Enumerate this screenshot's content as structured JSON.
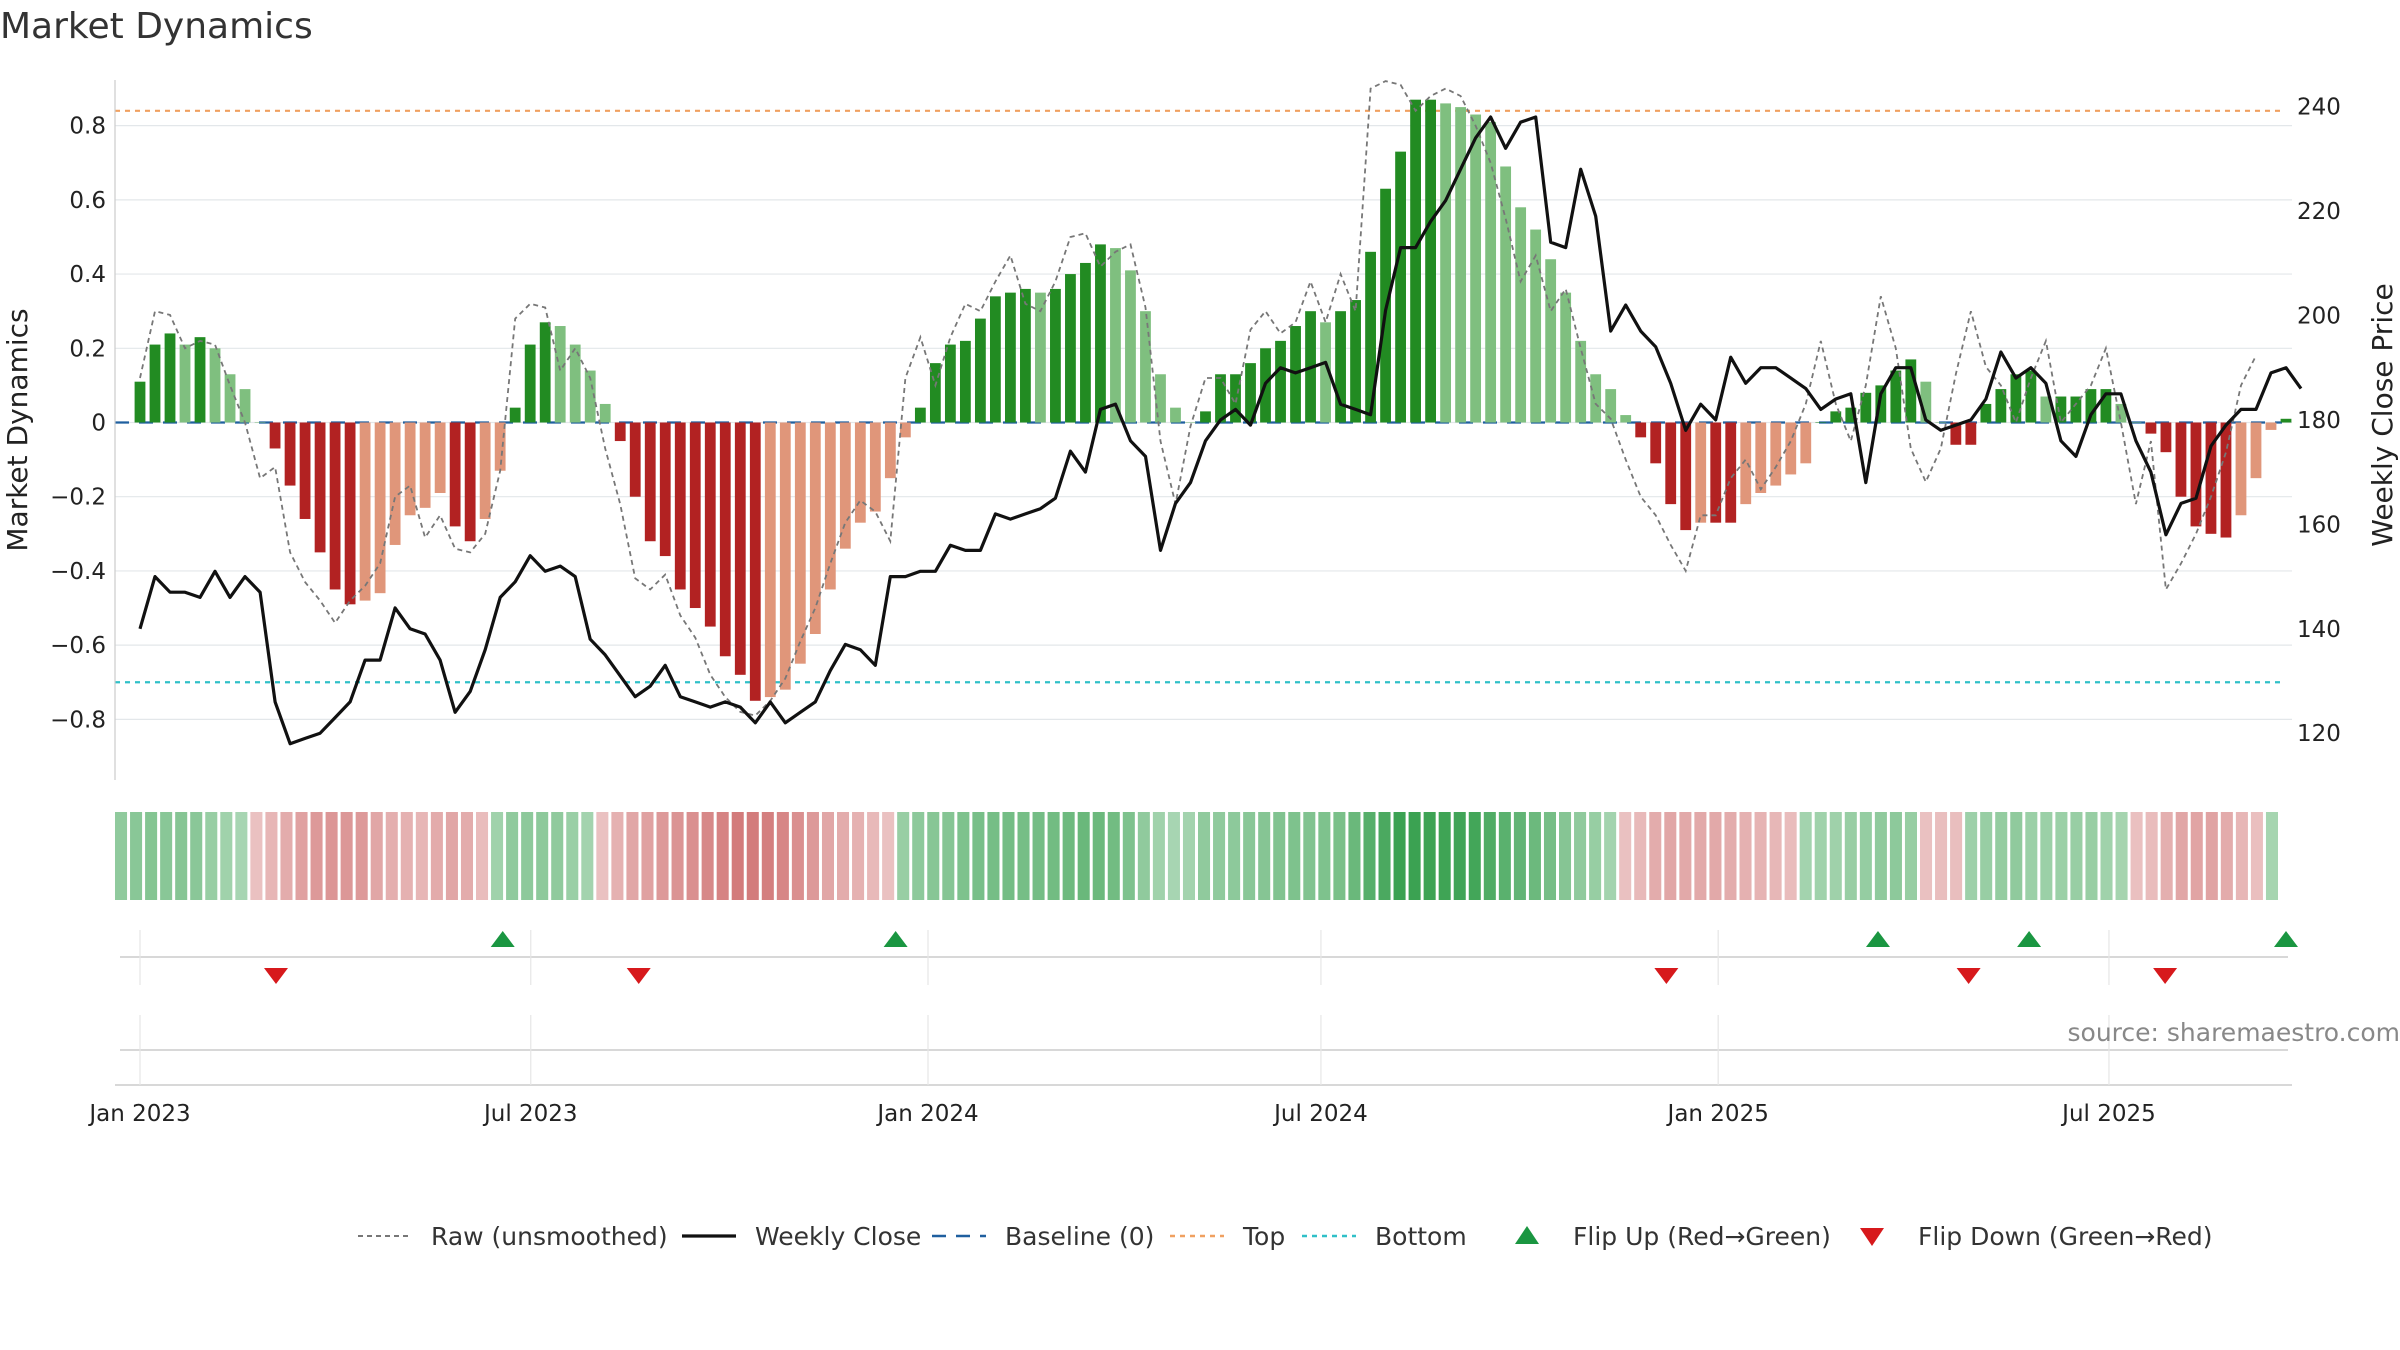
{
  "title": "Market Dynamics",
  "source": "source: sharemaestro.com",
  "colors": {
    "strong_green": "#228b22",
    "light_green": "#7fbf7f",
    "strong_red": "#b22222",
    "light_red": "#e0967a",
    "close_line": "#111111",
    "raw_line": "#777777",
    "baseline": "#1f5f9f",
    "top": "#f0a060",
    "bottom": "#30c0c8",
    "flip_up": "#1a9641",
    "flip_down": "#d7191c"
  },
  "legend": [
    {
      "label": "Raw (unsmoothed)",
      "icon": "dashed-gray-line"
    },
    {
      "label": "Weekly Close",
      "icon": "solid-black-line"
    },
    {
      "label": "Baseline (0)",
      "icon": "dashed-blue-line"
    },
    {
      "label": "Top",
      "icon": "dotted-orange-line"
    },
    {
      "label": "Bottom",
      "icon": "dotted-cyan-line"
    },
    {
      "label": "Flip Up (Red→Green)",
      "icon": "green-up-triangle"
    },
    {
      "label": "Flip Down (Green→Red)",
      "icon": "red-down-triangle"
    }
  ],
  "chart_data": {
    "type": "bar",
    "x_type": "date",
    "date_range": [
      "2023-01-01",
      "2025-09-21"
    ],
    "x_tick_labels": [
      {
        "date": "2023-01-01",
        "label": "Jan 2023"
      },
      {
        "date": "2023-07-01",
        "label": "Jul 2023"
      },
      {
        "date": "2024-01-01",
        "label": "Jan 2024"
      },
      {
        "date": "2024-07-01",
        "label": "Jul 2024"
      },
      {
        "date": "2025-01-01",
        "label": "Jan 2025"
      },
      {
        "date": "2025-07-01",
        "label": "Jul 2025"
      }
    ],
    "y_left": {
      "label": "Market Dynamics",
      "ylim": [
        -0.95,
        0.95
      ],
      "ticks": [
        0.8,
        0.6,
        0.4,
        0.2,
        0,
        -0.2,
        -0.4,
        -0.6,
        -0.8
      ],
      "tick_labels": [
        "0.8",
        "0.6",
        "0.4",
        "0.2",
        "0",
        "−0.2",
        "−0.4",
        "−0.6",
        "−0.8"
      ]
    },
    "y_right": {
      "label": "Weekly Close Price",
      "ylim": [
        112,
        247
      ],
      "ticks": [
        240,
        220,
        200,
        180,
        160,
        140,
        120
      ],
      "tick_labels": [
        "240",
        "220",
        "200",
        "180",
        "160",
        "140",
        "120"
      ]
    },
    "top_line": 0.84,
    "bottom_line": -0.7,
    "baseline": 0,
    "grid": true,
    "legend_position": "bottom",
    "series": [
      {
        "name": "Market Dynamics",
        "kind": "bar",
        "values": [
          0.11,
          0.21,
          0.24,
          0.21,
          0.23,
          0.2,
          0.13,
          0.09,
          0.0,
          -0.07,
          -0.17,
          -0.26,
          -0.35,
          -0.45,
          -0.49,
          -0.48,
          -0.46,
          -0.33,
          -0.25,
          -0.23,
          -0.19,
          -0.28,
          -0.32,
          -0.26,
          -0.13,
          0.04,
          0.21,
          0.27,
          0.26,
          0.21,
          0.14,
          0.05,
          -0.05,
          -0.2,
          -0.32,
          -0.36,
          -0.45,
          -0.5,
          -0.55,
          -0.63,
          -0.68,
          -0.75,
          -0.74,
          -0.72,
          -0.65,
          -0.57,
          -0.45,
          -0.34,
          -0.27,
          -0.24,
          -0.15,
          -0.04,
          0.04,
          0.16,
          0.21,
          0.22,
          0.28,
          0.34,
          0.35,
          0.36,
          0.35,
          0.36,
          0.4,
          0.43,
          0.48,
          0.47,
          0.41,
          0.3,
          0.13,
          0.04,
          0.0,
          0.03,
          0.13,
          0.13,
          0.16,
          0.2,
          0.22,
          0.26,
          0.3,
          0.27,
          0.3,
          0.33,
          0.46,
          0.63,
          0.73,
          0.87,
          0.87,
          0.86,
          0.85,
          0.83,
          0.81,
          0.69,
          0.58,
          0.52,
          0.44,
          0.35,
          0.22,
          0.13,
          0.09,
          0.02,
          -0.04,
          -0.11,
          -0.22,
          -0.29,
          -0.27,
          -0.27,
          -0.27,
          -0.22,
          -0.19,
          -0.17,
          -0.14,
          -0.11,
          0.0,
          0.03,
          0.04,
          0.08,
          0.1,
          0.14,
          0.17,
          0.11,
          0.0,
          -0.06,
          -0.06,
          0.05,
          0.09,
          0.13,
          0.14,
          0.07,
          0.07,
          0.07,
          0.09,
          0.09,
          0.05,
          0.0,
          -0.03,
          -0.08,
          -0.2,
          -0.28,
          -0.3,
          -0.31,
          -0.25,
          -0.15,
          -0.02,
          0.01
        ]
      },
      {
        "name": "Raw (unsmoothed)",
        "kind": "line",
        "values": [
          0.12,
          0.3,
          0.29,
          0.2,
          0.22,
          0.21,
          0.1,
          0.0,
          -0.15,
          -0.12,
          -0.35,
          -0.43,
          -0.48,
          -0.54,
          -0.48,
          -0.44,
          -0.38,
          -0.2,
          -0.17,
          -0.31,
          -0.25,
          -0.34,
          -0.35,
          -0.3,
          -0.13,
          0.28,
          0.32,
          0.31,
          0.14,
          0.2,
          0.12,
          -0.07,
          -0.22,
          -0.42,
          -0.45,
          -0.41,
          -0.52,
          -0.58,
          -0.68,
          -0.74,
          -0.78,
          -0.79,
          -0.75,
          -0.69,
          -0.59,
          -0.5,
          -0.38,
          -0.27,
          -0.21,
          -0.24,
          -0.32,
          0.12,
          0.23,
          0.1,
          0.23,
          0.32,
          0.3,
          0.38,
          0.45,
          0.32,
          0.3,
          0.38,
          0.5,
          0.51,
          0.42,
          0.46,
          0.48,
          0.31,
          -0.05,
          -0.22,
          -0.01,
          0.12,
          0.12,
          0.05,
          0.25,
          0.3,
          0.24,
          0.27,
          0.38,
          0.27,
          0.4,
          0.3,
          0.9,
          0.92,
          0.91,
          0.84,
          0.88,
          0.9,
          0.88,
          0.8,
          0.7,
          0.55,
          0.38,
          0.45,
          0.3,
          0.36,
          0.2,
          0.05,
          0.01,
          -0.1,
          -0.2,
          -0.25,
          -0.33,
          -0.4,
          -0.25,
          -0.25,
          -0.15,
          -0.1,
          -0.18,
          -0.12,
          -0.05,
          0.05,
          0.22,
          0.05,
          -0.05,
          0.1,
          0.34,
          0.2,
          -0.07,
          -0.16,
          -0.07,
          0.13,
          0.3,
          0.15,
          0.1,
          0.0,
          0.12,
          0.22,
          0.0,
          0.05,
          0.1,
          0.2,
          0.0,
          -0.22,
          -0.05,
          -0.45,
          -0.38,
          -0.3,
          -0.2,
          -0.08,
          0.1,
          0.18
        ]
      },
      {
        "name": "Weekly Close",
        "kind": "line",
        "axis": "right",
        "values": [
          140,
          150,
          147,
          147,
          146,
          151,
          146,
          150,
          147,
          126,
          118,
          119,
          120,
          123,
          126,
          134,
          134,
          144,
          140,
          139,
          134,
          124,
          128,
          136,
          146,
          149,
          154,
          151,
          152,
          150,
          138,
          135,
          131,
          127,
          129,
          133,
          127,
          126,
          125,
          126,
          125,
          122,
          126,
          122,
          124,
          126,
          132,
          137,
          136,
          133,
          150,
          150,
          151,
          151,
          156,
          155,
          155,
          162,
          161,
          162,
          163,
          165,
          174,
          170,
          182,
          183,
          176,
          173,
          155,
          164,
          168,
          176,
          180,
          182,
          179,
          187,
          190,
          189,
          190,
          191,
          183,
          182,
          181,
          201,
          213,
          213,
          218,
          222,
          228,
          234,
          238,
          232,
          237,
          238,
          214,
          213,
          228,
          219,
          197,
          202,
          197,
          194,
          187,
          178,
          183,
          180,
          192,
          187,
          190,
          190,
          188,
          186,
          182,
          184,
          185,
          168,
          185,
          190,
          190,
          180,
          178,
          179,
          180,
          184,
          193,
          188,
          190,
          187,
          176,
          173,
          181,
          185,
          185,
          176,
          170,
          158,
          164,
          165,
          175,
          179,
          182,
          182,
          189,
          190,
          186
        ]
      }
    ],
    "regime_strip": [
      0.4,
      0.45,
      0.48,
      0.45,
      0.47,
      0.44,
      0.35,
      0.3,
      0.25,
      -0.25,
      -0.35,
      -0.45,
      -0.55,
      -0.62,
      -0.65,
      -0.64,
      -0.62,
      -0.5,
      -0.42,
      -0.4,
      -0.36,
      -0.46,
      -0.5,
      -0.44,
      -0.3,
      0.3,
      0.4,
      0.42,
      0.42,
      0.4,
      0.34,
      0.28,
      -0.25,
      -0.4,
      -0.5,
      -0.55,
      -0.62,
      -0.67,
      -0.72,
      -0.78,
      -0.83,
      -0.9,
      -0.89,
      -0.87,
      -0.8,
      -0.72,
      -0.62,
      -0.5,
      -0.44,
      -0.4,
      -0.32,
      -0.25,
      0.35,
      0.42,
      0.46,
      0.47,
      0.52,
      0.56,
      0.57,
      0.58,
      0.57,
      0.58,
      0.6,
      0.62,
      0.65,
      0.64,
      0.6,
      0.52,
      0.4,
      0.3,
      0.25,
      0.28,
      0.4,
      0.4,
      0.42,
      0.45,
      0.47,
      0.5,
      0.52,
      0.5,
      0.52,
      0.55,
      0.65,
      0.78,
      0.85,
      0.95,
      0.95,
      0.94,
      0.93,
      0.92,
      0.9,
      0.82,
      0.75,
      0.7,
      0.64,
      0.57,
      0.47,
      0.4,
      0.36,
      0.28,
      -0.25,
      -0.32,
      -0.45,
      -0.5,
      -0.48,
      -0.48,
      -0.48,
      -0.45,
      -0.4,
      -0.38,
      -0.34,
      -0.3,
      0.28,
      0.3,
      0.31,
      0.35,
      0.37,
      0.4,
      0.42,
      0.36,
      -0.25,
      -0.28,
      -0.28,
      0.32,
      0.35,
      0.38,
      0.4,
      0.33,
      0.33,
      0.33,
      0.35,
      0.35,
      0.3,
      0.27,
      -0.26,
      -0.3,
      -0.42,
      -0.5,
      -0.52,
      -0.53,
      -0.46,
      -0.36,
      -0.27,
      0.26
    ],
    "flips_up": [
      "2023-06-18",
      "2023-12-17",
      "2025-03-16",
      "2025-05-25",
      "2025-09-21"
    ],
    "flips_down": [
      "2023-03-05",
      "2023-08-20",
      "2024-12-08",
      "2025-04-27",
      "2025-07-27"
    ]
  }
}
